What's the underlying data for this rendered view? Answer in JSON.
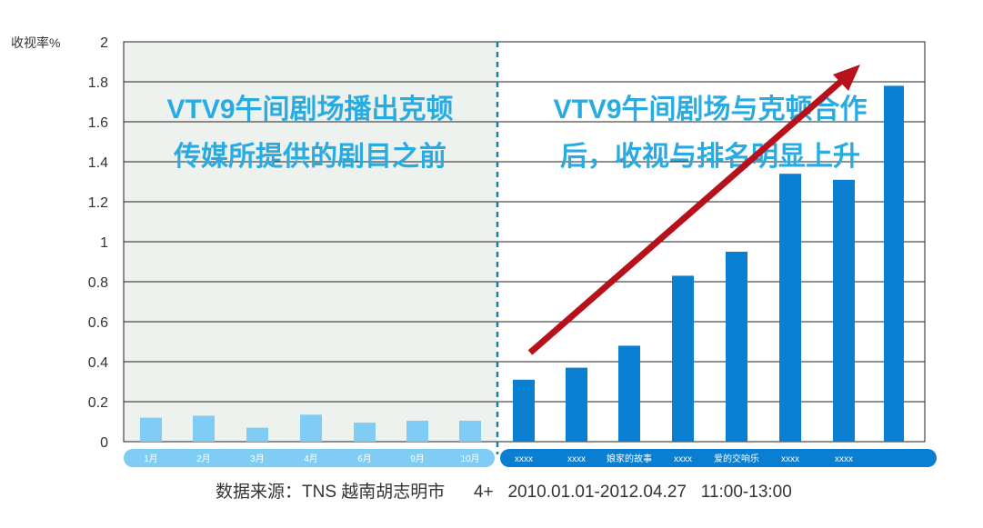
{
  "chart_data": {
    "type": "bar",
    "ylabel": "收视率%",
    "ylim": [
      0,
      2
    ],
    "yticks": [
      "0",
      "0.2",
      "0.4",
      "0.6",
      "0.8",
      "1",
      "1.2",
      "1.4",
      "1.6",
      "1.8",
      "2"
    ],
    "grid": true,
    "categories": [
      "1月",
      "2月",
      "3月",
      "4月",
      "6月",
      "9月",
      "10月",
      "xxxx",
      "xxxx",
      "娘家的故事",
      "xxxx",
      "爱的交响乐",
      "xxxx",
      "xxxx",
      ""
    ],
    "series": [
      {
        "values": [
          0.12,
          0.13,
          0.07,
          0.135,
          0.095,
          0.105,
          0.105,
          0.31,
          0.37,
          0.48,
          0.83,
          0.95,
          1.34,
          1.31,
          1.78
        ]
      }
    ],
    "colors": {
      "before": "#7fcdf5",
      "after": "#0a7fd1",
      "arrow": "#b5121b",
      "annotation": "#29abe2",
      "divider": "#1b7fa6",
      "shade": "#eef2ef"
    },
    "annotations": {
      "left": [
        "VTV9午间剧场播出克顿",
        "传媒所提供的剧目之前"
      ],
      "right": [
        "VTV9午间剧场与克顿合作",
        "后，收视与排名明显上升"
      ]
    },
    "source_note": "数据来源：TNS 越南胡志明市      4+   2010.01.01-2012.04.27   11:00-13:00"
  }
}
